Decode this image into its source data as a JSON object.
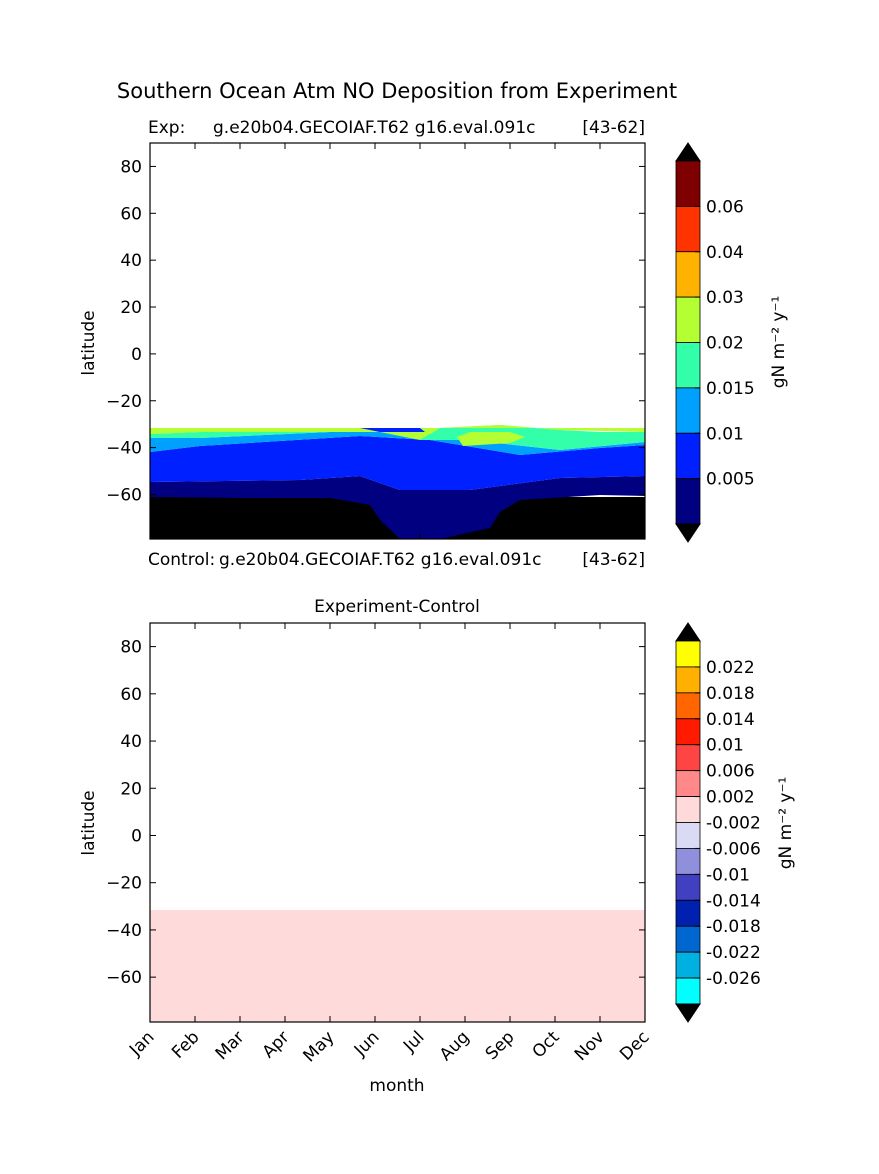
{
  "figure": {
    "title": "Southern Ocean Atm NO Deposition from Experiment"
  },
  "chart_data": [
    {
      "type": "contour",
      "panel": "experiment",
      "label_left": "Exp:",
      "label_case": "g.e20b04.GECOIAF.T62 g16.eval.091c",
      "label_years": "[43-62]",
      "ylabel": "latitude",
      "ylim": [
        -79,
        90
      ],
      "yticks": [
        "80",
        "60",
        "40",
        "20",
        "0",
        "−20",
        "−40",
        "−60"
      ],
      "ytick_values": [
        80,
        60,
        40,
        20,
        0,
        -20,
        -40,
        -60
      ],
      "xlim": [
        0,
        11
      ],
      "data_extent_lat": [
        -79,
        -32
      ],
      "levels_note": "filled contours, deposition highest (0.02-0.03) near -38 lat in Aug-Sep, lowest (<0.005) below -60 lat",
      "colorbar": {
        "label": "gN m⁻² y⁻¹",
        "ticks": [
          "0.06",
          "0.04",
          "0.03",
          "0.02",
          "0.015",
          "0.01",
          "0.005"
        ],
        "colors": [
          "#7f0000",
          "#ff3300",
          "#ffb300",
          "#b3ff33",
          "#33ffaa",
          "#00a0ff",
          "#0020ff",
          "#000080"
        ],
        "over_color": "#000000",
        "under_color": "#000000"
      }
    },
    {
      "type": "contour",
      "panel": "difference",
      "label_left": "Control:",
      "label_case": "g.e20b04.GECOIAF.T62 g16.eval.091c",
      "label_years": "[43-62]",
      "title": "Experiment-Control",
      "ylabel": "latitude",
      "xlabel": "month",
      "categories": [
        "Jan",
        "Feb",
        "Mar",
        "Apr",
        "May",
        "Jun",
        "Jul",
        "Aug",
        "Sep",
        "Oct",
        "Nov",
        "Dec"
      ],
      "ylim": [
        -79,
        90
      ],
      "yticks": [
        "80",
        "60",
        "40",
        "20",
        "0",
        "−20",
        "−40",
        "−60"
      ],
      "ytick_values": [
        80,
        60,
        40,
        20,
        0,
        -20,
        -40,
        -60
      ],
      "data_extent_lat": [
        -79,
        -32
      ],
      "uniform_value_range": [
        -0.002,
        0.002
      ],
      "colorbar": {
        "label": "gN m⁻² y⁻¹",
        "ticks": [
          "0.022",
          "0.018",
          "0.014",
          "0.01",
          "0.006",
          "0.002",
          "-0.002",
          "-0.006",
          "-0.01",
          "-0.014",
          "-0.018",
          "-0.022",
          "-0.026"
        ],
        "colors": [
          "#ffff00",
          "#ffb000",
          "#ff6600",
          "#ff1a00",
          "#ff4444",
          "#ff8888",
          "#ffdada",
          "#dadaf5",
          "#8f8fdc",
          "#4040c0",
          "#0020b0",
          "#0066d0",
          "#00b0e0",
          "#00ffff"
        ],
        "over_color": "#000000",
        "under_color": "#000000"
      }
    }
  ]
}
